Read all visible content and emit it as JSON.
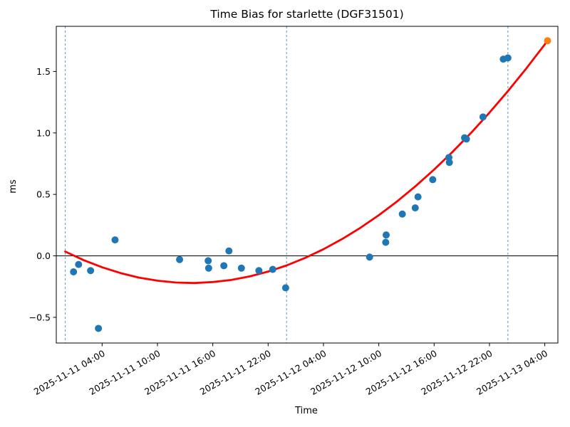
{
  "chart_data": {
    "type": "scatter",
    "title": "Time Bias for starlette (DGF31501)",
    "xlabel": "Time",
    "ylabel": "ms",
    "time_axis_epoch": "2025-11-11 00:00",
    "x_unit": "hours since 2025-11-11 00:00",
    "xlim_hours": [
      -0.97,
      53.42
    ],
    "ylim": [
      -0.709,
      1.867
    ],
    "grid": false,
    "legend": "none",
    "x_ticks": [
      {
        "t": 4,
        "label": "2025-11-11 04:00"
      },
      {
        "t": 10,
        "label": "2025-11-11 10:00"
      },
      {
        "t": 16,
        "label": "2025-11-11 16:00"
      },
      {
        "t": 22,
        "label": "2025-11-11 22:00"
      },
      {
        "t": 28,
        "label": "2025-11-12 04:00"
      },
      {
        "t": 34,
        "label": "2025-11-12 10:00"
      },
      {
        "t": 40,
        "label": "2025-11-12 16:00"
      },
      {
        "t": 46,
        "label": "2025-11-12 22:00"
      },
      {
        "t": 52,
        "label": "2025-11-13 04:00"
      }
    ],
    "y_ticks": [
      {
        "v": -0.5,
        "label": "−0.5"
      },
      {
        "v": 0.0,
        "label": "0.0"
      },
      {
        "v": 0.5,
        "label": "0.5"
      },
      {
        "v": 1.0,
        "label": "1.0"
      },
      {
        "v": 1.5,
        "label": "1.5"
      }
    ],
    "series": [
      {
        "name": "observed-bias-points",
        "marker": "circle",
        "color": "#1f77b4",
        "points": [
          [
            0.9,
            -0.13
          ],
          [
            1.45,
            -0.07
          ],
          [
            2.75,
            -0.12
          ],
          [
            3.6,
            -0.59
          ],
          [
            5.4,
            0.13
          ],
          [
            12.4,
            -0.03
          ],
          [
            15.5,
            -0.04
          ],
          [
            15.55,
            -0.1
          ],
          [
            17.2,
            -0.08
          ],
          [
            17.75,
            0.04
          ],
          [
            19.1,
            -0.1
          ],
          [
            21.0,
            -0.12
          ],
          [
            22.5,
            -0.11
          ],
          [
            23.9,
            -0.26
          ],
          [
            33.0,
            -0.01
          ],
          [
            34.75,
            0.11
          ],
          [
            34.8,
            0.17
          ],
          [
            36.55,
            0.34
          ],
          [
            37.95,
            0.39
          ],
          [
            38.25,
            0.48
          ],
          [
            39.85,
            0.62
          ],
          [
            41.6,
            0.8
          ],
          [
            41.65,
            0.76
          ],
          [
            43.3,
            0.96
          ],
          [
            43.5,
            0.95
          ],
          [
            45.3,
            1.13
          ],
          [
            47.5,
            1.6
          ],
          [
            48.0,
            1.61
          ]
        ]
      },
      {
        "name": "latest-point",
        "marker": "circle",
        "color": "#ff7f0e",
        "points": [
          [
            52.3,
            1.75
          ]
        ]
      },
      {
        "name": "polynomial-fit-line",
        "marker": "line",
        "color": "#ff0000",
        "points": [
          [
            0,
            0.035
          ],
          [
            2,
            -0.035
          ],
          [
            4,
            -0.093
          ],
          [
            6,
            -0.14
          ],
          [
            8,
            -0.177
          ],
          [
            10,
            -0.202
          ],
          [
            12,
            -0.217
          ],
          [
            14,
            -0.221
          ],
          [
            16,
            -0.213
          ],
          [
            18,
            -0.196
          ],
          [
            20,
            -0.167
          ],
          [
            22,
            -0.128
          ],
          [
            24,
            -0.078
          ],
          [
            26,
            -0.017
          ],
          [
            28,
            0.054
          ],
          [
            30,
            0.136
          ],
          [
            32,
            0.228
          ],
          [
            34,
            0.331
          ],
          [
            36,
            0.444
          ],
          [
            38,
            0.568
          ],
          [
            40,
            0.702
          ],
          [
            42,
            0.846
          ],
          [
            44,
            1.0
          ],
          [
            46,
            1.165
          ],
          [
            48,
            1.34
          ],
          [
            50,
            1.525
          ],
          [
            52,
            1.72
          ],
          [
            52.3,
            1.751
          ]
        ]
      }
    ],
    "day_boundary_lines_hours": [
      0,
      24,
      48
    ],
    "zero_line": 0.0,
    "colors": {
      "points": "#1f77b4",
      "latest_point": "#ff7f0e",
      "fit_line": "#ff0000",
      "day_line": "#5f94c5",
      "zero_line": "#000000",
      "spine": "#000000",
      "background": "#ffffff"
    }
  }
}
